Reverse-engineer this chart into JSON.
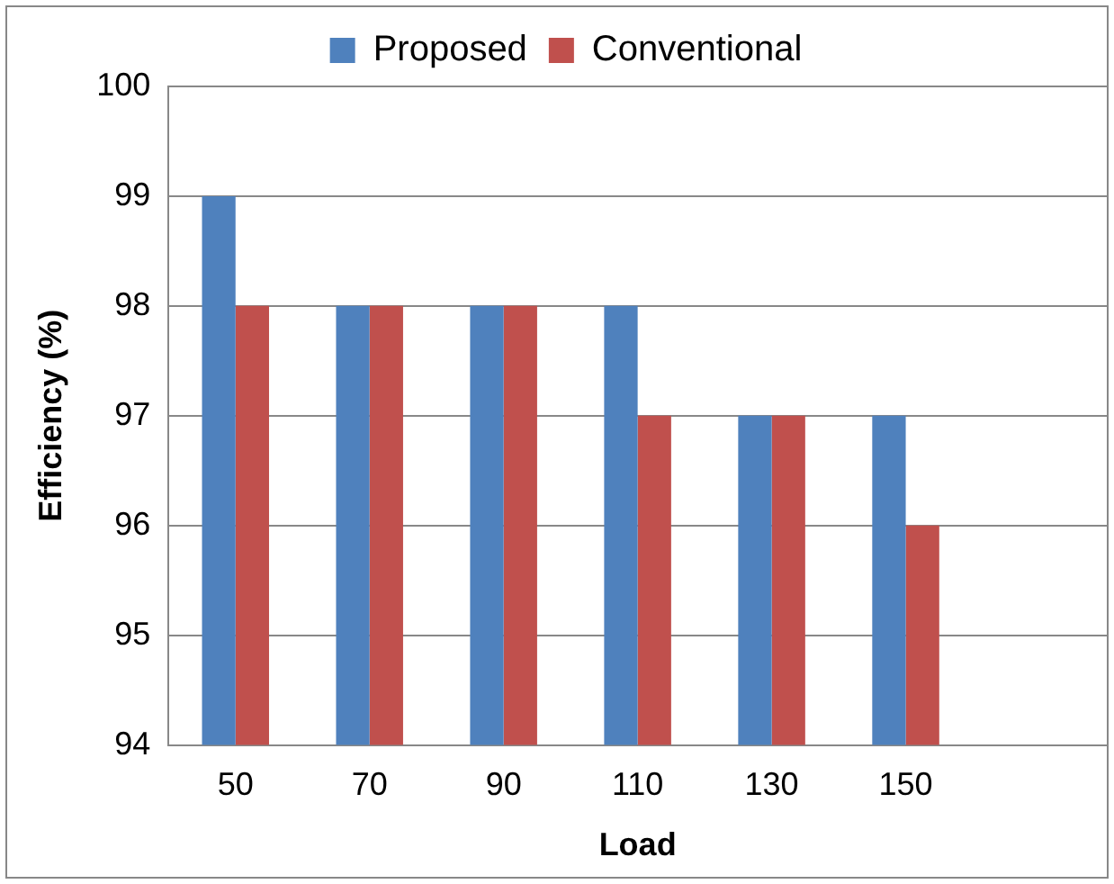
{
  "chart_data": {
    "type": "bar",
    "xlabel": "Load",
    "ylabel": "Efficiency (%)",
    "categories": [
      "50",
      "70",
      "90",
      "110",
      "130",
      "150",
      null
    ],
    "series": [
      {
        "name": "Proposed",
        "color": "#4f81bd",
        "values": [
          99,
          98,
          98,
          98,
          97,
          97,
          null
        ]
      },
      {
        "name": "Conventional",
        "color": "#c0504d",
        "values": [
          98,
          98,
          98,
          97,
          97,
          96,
          null
        ]
      }
    ],
    "ylim": [
      94,
      100
    ],
    "yticks": [
      94,
      95,
      96,
      97,
      98,
      99,
      100
    ],
    "grid": "y",
    "legend": "top"
  }
}
